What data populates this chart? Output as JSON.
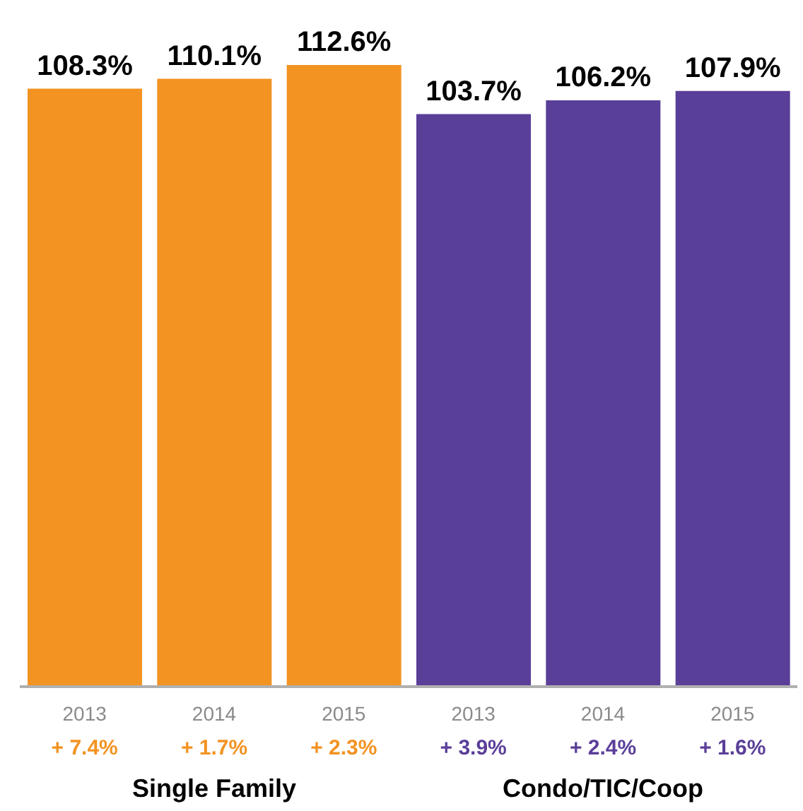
{
  "chart_data": {
    "type": "bar",
    "categories": [
      "2013",
      "2014",
      "2015",
      "2013",
      "2014",
      "2015"
    ],
    "values": [
      108.3,
      110.1,
      112.6,
      103.7,
      106.2,
      107.9
    ],
    "colors": [
      "#f39322",
      "#f39322",
      "#f39322",
      "#5a3f99",
      "#5a3f99",
      "#5a3f99"
    ],
    "value_labels": [
      "108.3%",
      "110.1%",
      "112.6%",
      "103.7%",
      "106.2%",
      "107.9%"
    ],
    "annotations": [
      "+ 7.4%",
      "+ 1.7%",
      "+ 2.3%",
      "+ 3.9%",
      "+ 2.4%",
      "+ 1.6%",
      "Single Family",
      "Condo/TIC/Coop"
    ],
    "grid": false,
    "legend": false
  }
}
